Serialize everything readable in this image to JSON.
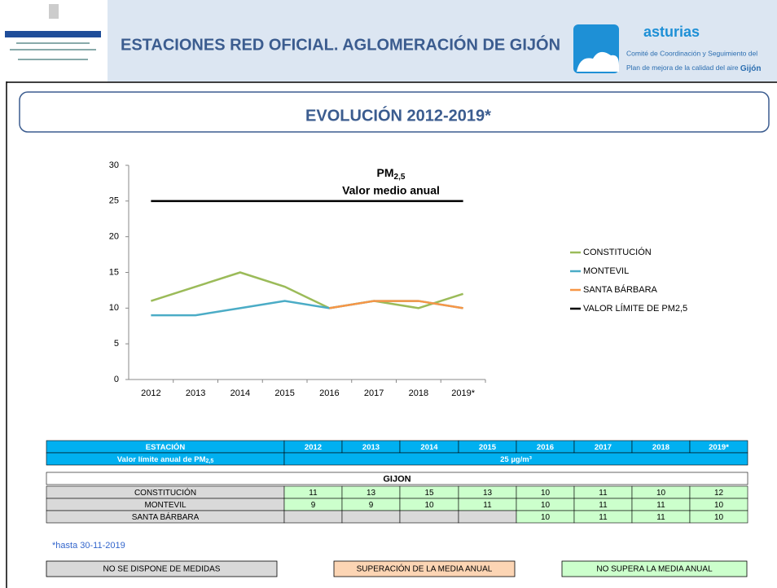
{
  "header": {
    "title": "ESTACIONES RED OFICIAL. AGLOMERACIÓN DE GIJÓN",
    "logo_name": "asturias",
    "logo_line1": "Comité de Coordinación y Seguimiento del",
    "logo_line2": "Plan de mejora de la calidad del aire",
    "logo_city": "Gijón"
  },
  "section_title": "EVOLUCIÓN 2012-2019*",
  "chart_data": {
    "type": "line",
    "title": "PM",
    "title_sub": "2,5",
    "subtitle": "Valor medio anual",
    "categories": [
      "2012",
      "2013",
      "2014",
      "2015",
      "2016",
      "2017",
      "2018",
      "2019*"
    ],
    "series": [
      {
        "name": "CONSTITUCIÓN",
        "color": "#9bbb59",
        "values": [
          11,
          13,
          15,
          13,
          10,
          11,
          10,
          12
        ]
      },
      {
        "name": "MONTEVIL",
        "color": "#4bacc6",
        "values": [
          9,
          9,
          10,
          11,
          10,
          11,
          11,
          10
        ]
      },
      {
        "name": "SANTA BÁRBARA",
        "color": "#f79646",
        "values": [
          null,
          null,
          null,
          null,
          10,
          11,
          11,
          10
        ]
      },
      {
        "name": "VALOR LÍMITE DE PM2,5",
        "color": "#000000",
        "values": [
          25,
          25,
          25,
          25,
          25,
          25,
          25,
          25
        ]
      }
    ],
    "ylim": [
      0,
      30
    ],
    "yticks": [
      0,
      5,
      10,
      15,
      20,
      25,
      30
    ],
    "grid": false,
    "legend": "right"
  },
  "table": {
    "header": [
      "ESTACIÓN",
      "2012",
      "2013",
      "2014",
      "2015",
      "2016",
      "2017",
      "2018",
      "2019*"
    ],
    "limit_label": "Valor límite anual de PM",
    "limit_label_sub": "2,5",
    "limit_value": "25 µg/m³",
    "group": "GIJON",
    "rows": [
      {
        "name": "CONSTITUCIÓN",
        "values": [
          11,
          13,
          15,
          13,
          10,
          11,
          10,
          12
        ]
      },
      {
        "name": "MONTEVIL",
        "values": [
          9,
          9,
          10,
          11,
          10,
          11,
          11,
          10
        ]
      },
      {
        "name": "SANTA BÁRBARA",
        "values": [
          null,
          null,
          null,
          null,
          10,
          11,
          11,
          10
        ]
      }
    ]
  },
  "footnote": "*hasta 30-11-2019",
  "key": [
    "NO SE DISPONE DE MEDIDAS",
    "SUPERACIÓN DE LA MEDIA ANUAL",
    "NO SUPERA LA MEDIA ANUAL"
  ]
}
